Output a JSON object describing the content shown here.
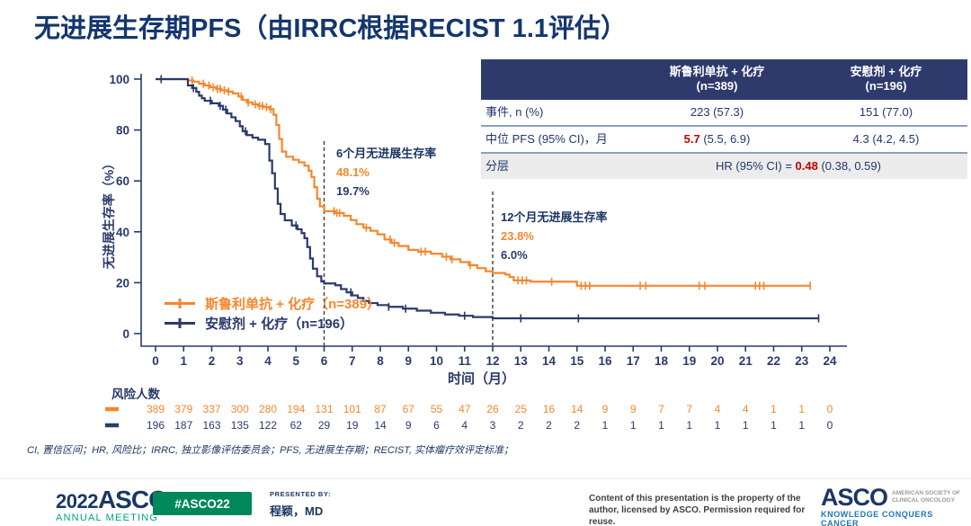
{
  "title": "无进展生存期PFS（由IRRC根据RECIST 1.1评估）",
  "colors": {
    "navy_text": "#1B3764",
    "navy_series": "#2A3A6C",
    "orange_series": "#F5872E",
    "red": "#C00000",
    "table_header_bg": "#2E3A6C",
    "badge_green": "#00875A",
    "tagline_blue": "#1C75BC",
    "annual_teal": "#00A188",
    "dashed_line": "#3C3C3C"
  },
  "stats_table": {
    "columns": [
      {
        "name": "斯鲁利单抗 + 化疗",
        "n": "(n=389)"
      },
      {
        "name": "安慰剂 + 化疗",
        "n": "(n=196)"
      }
    ],
    "row_events": {
      "label": "事件, n (%)",
      "v1": "223 (57.3)",
      "v2": "151 (77.0)"
    },
    "row_median": {
      "label": "中位 PFS (95% CI)，月",
      "v1_em": "5.7",
      "v1_rest": "(5.5, 6.9)",
      "v2": "4.3 (4.2, 4.5)"
    },
    "row_hr": {
      "label": "分层",
      "prefix": "HR (95% CI) = ",
      "em": "0.48",
      "rest": "(0.38, 0.59)"
    }
  },
  "annotations": {
    "m6": {
      "title": "6个月无进展生存率",
      "serplulimab": "48.1%",
      "placebo": "19.7%"
    },
    "m12": {
      "title": "12个月无进展生存率",
      "serplulimab": "23.8%",
      "placebo": "6.0%"
    }
  },
  "legend": [
    {
      "label": "斯鲁利单抗 + 化疗（n=389）"
    },
    {
      "label": "安慰剂 + 化疗（n=196）"
    }
  ],
  "chart_data": {
    "type": "line",
    "subtype": "kaplan-meier-step",
    "title": "无进展生存期PFS（由IRRC根据RECIST 1.1评估）",
    "xlabel": "时间（月）",
    "ylabel": "无进展生存率（%）",
    "xlim": [
      0,
      24
    ],
    "ylim": [
      0,
      100
    ],
    "x_ticks": [
      0,
      1,
      2,
      3,
      4,
      5,
      6,
      7,
      8,
      9,
      10,
      11,
      12,
      13,
      14,
      15,
      16,
      17,
      18,
      19,
      20,
      21,
      22,
      23,
      24
    ],
    "y_ticks": [
      0,
      20,
      40,
      60,
      80,
      100
    ],
    "grid": false,
    "legend_position": "lower-left-inside",
    "dashed_reference_lines": [
      {
        "x": 6,
        "top_pct": 76
      },
      {
        "x": 12,
        "top_pct": 56
      }
    ],
    "series": [
      {
        "name": "斯鲁利单抗 + 化疗",
        "n": 389,
        "color": "#F5872E",
        "median_pfs_months": 5.7,
        "median_ci": "(5.5, 6.9)",
        "rate_6m_pct": 48.1,
        "rate_12m_pct": 23.8,
        "steps": [
          [
            0,
            100
          ],
          [
            1.15,
            99.5
          ],
          [
            1.35,
            99
          ],
          [
            1.55,
            98.2
          ],
          [
            1.75,
            97.5
          ],
          [
            1.95,
            96.8
          ],
          [
            2.15,
            96.2
          ],
          [
            2.35,
            95.6
          ],
          [
            2.55,
            95.1
          ],
          [
            2.75,
            94.4
          ],
          [
            2.95,
            93.2
          ],
          [
            3.1,
            91.8
          ],
          [
            3.25,
            90.8
          ],
          [
            3.45,
            90.1
          ],
          [
            3.65,
            89.5
          ],
          [
            3.85,
            89
          ],
          [
            4.05,
            88.2
          ],
          [
            4.2,
            86
          ],
          [
            4.3,
            82
          ],
          [
            4.4,
            76.5
          ],
          [
            4.5,
            71.5
          ],
          [
            4.65,
            69.5
          ],
          [
            4.9,
            68.3
          ],
          [
            5.1,
            67.3
          ],
          [
            5.3,
            66
          ],
          [
            5.45,
            64
          ],
          [
            5.55,
            61.5
          ],
          [
            5.65,
            57.5
          ],
          [
            5.75,
            53
          ],
          [
            5.85,
            50
          ],
          [
            6,
            48.1
          ],
          [
            6.4,
            47.4
          ],
          [
            6.7,
            46.3
          ],
          [
            6.95,
            44.6
          ],
          [
            7.15,
            43
          ],
          [
            7.4,
            41.6
          ],
          [
            7.65,
            40.4
          ],
          [
            7.9,
            39
          ],
          [
            8.15,
            37
          ],
          [
            8.4,
            35.6
          ],
          [
            8.65,
            34.4
          ],
          [
            9,
            32.9
          ],
          [
            9.35,
            32.2
          ],
          [
            9.8,
            31.4
          ],
          [
            10.2,
            30.2
          ],
          [
            10.5,
            29.2
          ],
          [
            10.85,
            28.1
          ],
          [
            11.15,
            26.9
          ],
          [
            11.45,
            25.7
          ],
          [
            11.75,
            24.5
          ],
          [
            12,
            23.8
          ],
          [
            12.45,
            23.2
          ],
          [
            12.6,
            22.2
          ],
          [
            12.75,
            20.9
          ],
          [
            13.35,
            20.4
          ],
          [
            15,
            18.8
          ],
          [
            23.3,
            18.8
          ]
        ],
        "censors": [
          0.2,
          1.3,
          1.7,
          1.9,
          2.05,
          2.2,
          2.3,
          2.45,
          2.6,
          3.05,
          3.3,
          3.55,
          3.7,
          3.8,
          3.95,
          4.1,
          6.35,
          6.45,
          6.55,
          7.5,
          8.35,
          8.5,
          9.45,
          9.6,
          10.35,
          10.55,
          11.2,
          12.9,
          13.05,
          13.2,
          14.1,
          15.15,
          15.3,
          15.45,
          17.25,
          17.45,
          19.35,
          19.55,
          21.35,
          21.5,
          21.65,
          23.3
        ]
      },
      {
        "name": "安慰剂 + 化疗",
        "n": 196,
        "color": "#2A3A6C",
        "median_pfs_months": 4.3,
        "median_ci": "(4.2, 4.5)",
        "rate_6m_pct": 19.7,
        "rate_12m_pct": 6.0,
        "steps": [
          [
            0,
            100
          ],
          [
            1.15,
            97.5
          ],
          [
            1.3,
            96.5
          ],
          [
            1.45,
            95
          ],
          [
            1.55,
            93.5
          ],
          [
            1.65,
            92.5
          ],
          [
            1.75,
            91.5
          ],
          [
            2,
            90.5
          ],
          [
            2.25,
            89.5
          ],
          [
            2.4,
            88
          ],
          [
            2.55,
            86.5
          ],
          [
            2.7,
            85
          ],
          [
            2.85,
            83.5
          ],
          [
            3,
            81.5
          ],
          [
            3.1,
            79.5
          ],
          [
            3.25,
            78
          ],
          [
            3.45,
            77
          ],
          [
            3.65,
            76.2
          ],
          [
            3.9,
            74.5
          ],
          [
            4.05,
            68
          ],
          [
            4.15,
            63
          ],
          [
            4.25,
            57
          ],
          [
            4.35,
            51
          ],
          [
            4.45,
            47
          ],
          [
            4.6,
            44.5
          ],
          [
            4.85,
            42.5
          ],
          [
            5.05,
            41
          ],
          [
            5.2,
            39.5
          ],
          [
            5.3,
            37.5
          ],
          [
            5.4,
            34
          ],
          [
            5.5,
            29.5
          ],
          [
            5.6,
            25.5
          ],
          [
            5.75,
            22.5
          ],
          [
            5.9,
            20.5
          ],
          [
            6,
            19.7
          ],
          [
            6.4,
            19
          ],
          [
            6.6,
            17.5
          ],
          [
            6.8,
            16.2
          ],
          [
            7,
            15
          ],
          [
            7.2,
            14
          ],
          [
            7.4,
            12.8
          ],
          [
            7.6,
            12
          ],
          [
            7.9,
            11.2
          ],
          [
            8.3,
            10.5
          ],
          [
            8.8,
            9.8
          ],
          [
            9.3,
            9
          ],
          [
            9.8,
            8.2
          ],
          [
            10.3,
            7.5
          ],
          [
            10.8,
            7
          ],
          [
            11.3,
            6.5
          ],
          [
            12,
            6
          ],
          [
            23.6,
            6
          ]
        ],
        "censors": [
          0.2,
          1.35,
          1.95,
          2.3,
          2.5,
          3.2,
          5,
          6.95,
          8.3,
          8.9,
          11,
          13,
          15.05,
          23.6
        ]
      }
    ],
    "hazard_ratio": "HR (95% CI) = 0.48 (0.38, 0.59)"
  },
  "risk_table": {
    "label": "风险人数",
    "rows": [
      {
        "series": "斯鲁利单抗 + 化疗",
        "color": "#F5872E",
        "values": [
          389,
          379,
          337,
          300,
          280,
          194,
          131,
          101,
          87,
          67,
          55,
          47,
          26,
          25,
          16,
          14,
          9,
          9,
          7,
          7,
          4,
          4,
          1,
          1,
          0
        ]
      },
      {
        "series": "安慰剂 + 化疗",
        "color": "#2A3A6C",
        "values": [
          196,
          187,
          163,
          135,
          122,
          62,
          29,
          19,
          14,
          9,
          6,
          4,
          3,
          2,
          2,
          2,
          1,
          1,
          1,
          1,
          1,
          1,
          1,
          1,
          0
        ]
      }
    ]
  },
  "footnote": "CI, 置信区间；HR, 风险比；IRRC, 独立影像评估委员会；PFS, 无进展生存期；RECIST, 实体瘤疗效评定标准；",
  "footer": {
    "year": "2022",
    "brand": "ASCO",
    "reg": "®",
    "annual": "ANNUAL MEETING",
    "hashtag": "#ASCO22",
    "presented_label": "PRESENTED BY:",
    "presenter": "程颖，MD",
    "disclaimer1": "Content of this presentation is the property of the",
    "disclaimer2": "author, licensed by ASCO. Permission required for reuse.",
    "asco": "ASCO",
    "asco_sub1": "AMERICAN SOCIETY OF",
    "asco_sub2": "CLINICAL ONCOLOGY",
    "tagline": "KNOWLEDGE CONQUERS CANCER"
  }
}
